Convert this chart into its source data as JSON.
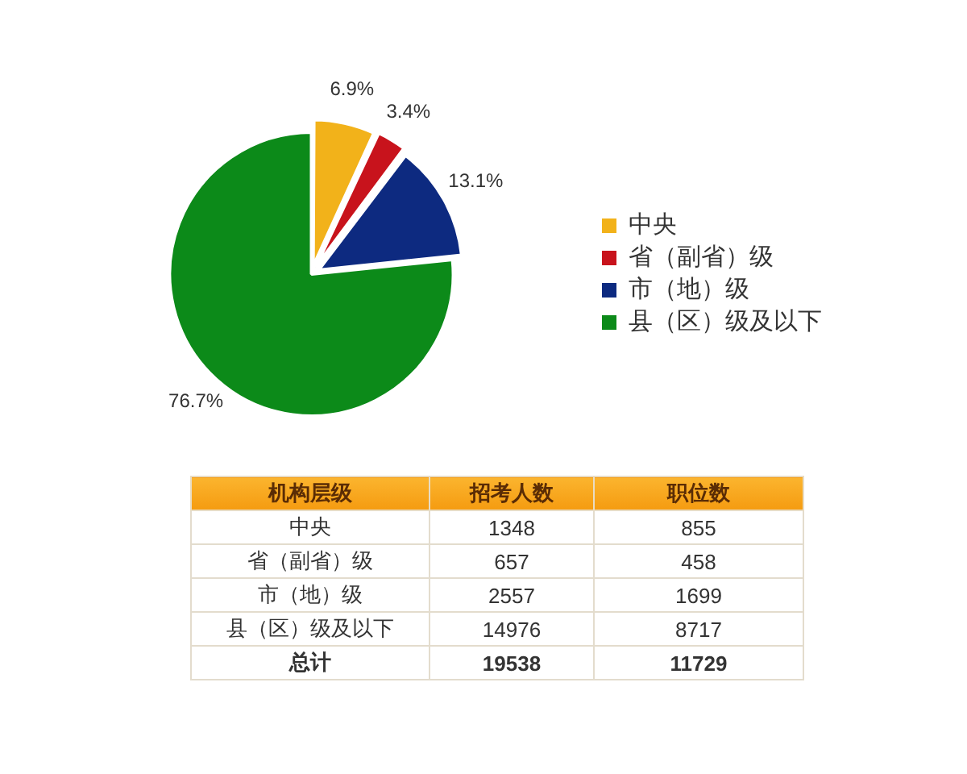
{
  "chart_data": [
    {
      "type": "pie",
      "categories": [
        "中央",
        "省（副省）级",
        "市（地）级",
        "县（区）级及以下"
      ],
      "values": [
        6.9,
        3.4,
        13.1,
        76.7
      ],
      "colors": [
        "#f2b21a",
        "#c8131c",
        "#0d2a80",
        "#0c8a19"
      ],
      "value_labels": [
        "6.9%",
        "3.4%",
        "13.1%",
        "76.7%"
      ],
      "legend": "right"
    },
    {
      "type": "other",
      "xlabel": "机构层级",
      "categories": [
        "中央",
        "省（副省）级",
        "市（地）级",
        "县（区）级及以下",
        "总计"
      ],
      "series": [
        {
          "name": "招考人数",
          "values": [
            1348,
            657,
            2557,
            14976,
            19538
          ]
        },
        {
          "name": "职位数",
          "values": [
            855,
            458,
            1699,
            8717,
            11729
          ]
        }
      ],
      "data_labels": true
    }
  ]
}
